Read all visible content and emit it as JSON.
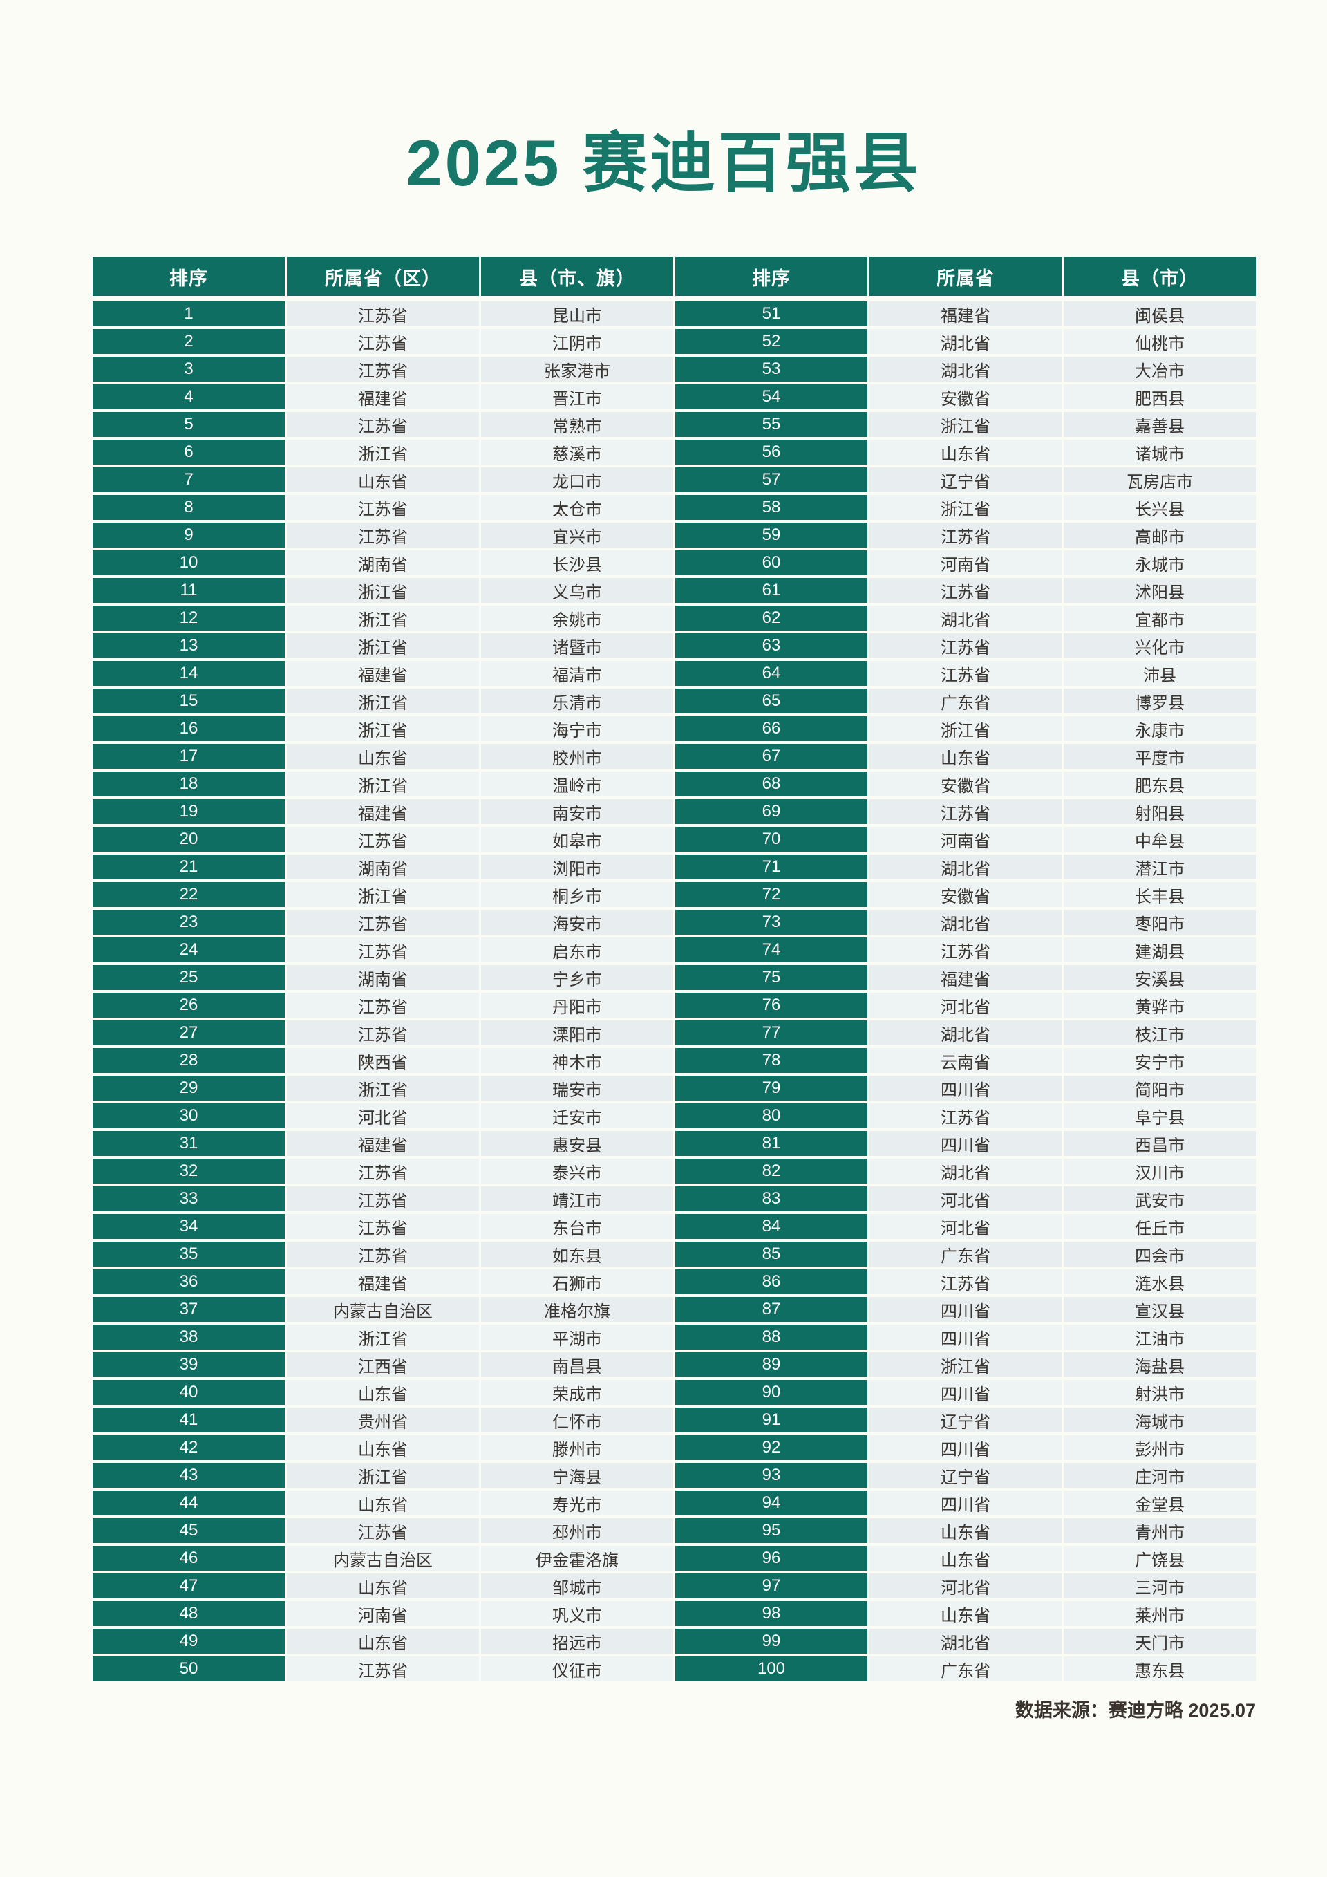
{
  "title": "2025 赛迪百强县",
  "footer": "数据来源：赛迪方略 2025.07",
  "colors": {
    "teal": "#0f6e62",
    "title_teal": "#17786a",
    "row_shade_a": "#e8eef0",
    "row_shade_b": "#eef3f3",
    "text_dark": "#3a3530",
    "page_bg": "#fcfcf6"
  },
  "table": {
    "headers": [
      "排序",
      "所属省（区）",
      "县（市、旗）",
      "排序",
      "所属省",
      "县（市）"
    ],
    "left_rows": [
      [
        "1",
        "江苏省",
        "昆山市"
      ],
      [
        "2",
        "江苏省",
        "江阴市"
      ],
      [
        "3",
        "江苏省",
        "张家港市"
      ],
      [
        "4",
        "福建省",
        "晋江市"
      ],
      [
        "5",
        "江苏省",
        "常熟市"
      ],
      [
        "6",
        "浙江省",
        "慈溪市"
      ],
      [
        "7",
        "山东省",
        "龙口市"
      ],
      [
        "8",
        "江苏省",
        "太仓市"
      ],
      [
        "9",
        "江苏省",
        "宜兴市"
      ],
      [
        "10",
        "湖南省",
        "长沙县"
      ],
      [
        "11",
        "浙江省",
        "义乌市"
      ],
      [
        "12",
        "浙江省",
        "余姚市"
      ],
      [
        "13",
        "浙江省",
        "诸暨市"
      ],
      [
        "14",
        "福建省",
        "福清市"
      ],
      [
        "15",
        "浙江省",
        "乐清市"
      ],
      [
        "16",
        "浙江省",
        "海宁市"
      ],
      [
        "17",
        "山东省",
        "胶州市"
      ],
      [
        "18",
        "浙江省",
        "温岭市"
      ],
      [
        "19",
        "福建省",
        "南安市"
      ],
      [
        "20",
        "江苏省",
        "如皋市"
      ],
      [
        "21",
        "湖南省",
        "浏阳市"
      ],
      [
        "22",
        "浙江省",
        "桐乡市"
      ],
      [
        "23",
        "江苏省",
        "海安市"
      ],
      [
        "24",
        "江苏省",
        "启东市"
      ],
      [
        "25",
        "湖南省",
        "宁乡市"
      ],
      [
        "26",
        "江苏省",
        "丹阳市"
      ],
      [
        "27",
        "江苏省",
        "溧阳市"
      ],
      [
        "28",
        "陕西省",
        "神木市"
      ],
      [
        "29",
        "浙江省",
        "瑞安市"
      ],
      [
        "30",
        "河北省",
        "迁安市"
      ],
      [
        "31",
        "福建省",
        "惠安县"
      ],
      [
        "32",
        "江苏省",
        "泰兴市"
      ],
      [
        "33",
        "江苏省",
        "靖江市"
      ],
      [
        "34",
        "江苏省",
        "东台市"
      ],
      [
        "35",
        "江苏省",
        "如东县"
      ],
      [
        "36",
        "福建省",
        "石狮市"
      ],
      [
        "37",
        "内蒙古自治区",
        "准格尔旗"
      ],
      [
        "38",
        "浙江省",
        "平湖市"
      ],
      [
        "39",
        "江西省",
        "南昌县"
      ],
      [
        "40",
        "山东省",
        "荣成市"
      ],
      [
        "41",
        "贵州省",
        "仁怀市"
      ],
      [
        "42",
        "山东省",
        "滕州市"
      ],
      [
        "43",
        "浙江省",
        "宁海县"
      ],
      [
        "44",
        "山东省",
        "寿光市"
      ],
      [
        "45",
        "江苏省",
        "邳州市"
      ],
      [
        "46",
        "内蒙古自治区",
        "伊金霍洛旗"
      ],
      [
        "47",
        "山东省",
        "邹城市"
      ],
      [
        "48",
        "河南省",
        "巩义市"
      ],
      [
        "49",
        "山东省",
        "招远市"
      ],
      [
        "50",
        "江苏省",
        "仪征市"
      ]
    ],
    "right_rows": [
      [
        "51",
        "福建省",
        "闽侯县"
      ],
      [
        "52",
        "湖北省",
        "仙桃市"
      ],
      [
        "53",
        "湖北省",
        "大冶市"
      ],
      [
        "54",
        "安徽省",
        "肥西县"
      ],
      [
        "55",
        "浙江省",
        "嘉善县"
      ],
      [
        "56",
        "山东省",
        "诸城市"
      ],
      [
        "57",
        "辽宁省",
        "瓦房店市"
      ],
      [
        "58",
        "浙江省",
        "长兴县"
      ],
      [
        "59",
        "江苏省",
        "高邮市"
      ],
      [
        "60",
        "河南省",
        "永城市"
      ],
      [
        "61",
        "江苏省",
        "沭阳县"
      ],
      [
        "62",
        "湖北省",
        "宜都市"
      ],
      [
        "63",
        "江苏省",
        "兴化市"
      ],
      [
        "64",
        "江苏省",
        "沛县"
      ],
      [
        "65",
        "广东省",
        "博罗县"
      ],
      [
        "66",
        "浙江省",
        "永康市"
      ],
      [
        "67",
        "山东省",
        "平度市"
      ],
      [
        "68",
        "安徽省",
        "肥东县"
      ],
      [
        "69",
        "江苏省",
        "射阳县"
      ],
      [
        "70",
        "河南省",
        "中牟县"
      ],
      [
        "71",
        "湖北省",
        "潜江市"
      ],
      [
        "72",
        "安徽省",
        "长丰县"
      ],
      [
        "73",
        "湖北省",
        "枣阳市"
      ],
      [
        "74",
        "江苏省",
        "建湖县"
      ],
      [
        "75",
        "福建省",
        "安溪县"
      ],
      [
        "76",
        "河北省",
        "黄骅市"
      ],
      [
        "77",
        "湖北省",
        "枝江市"
      ],
      [
        "78",
        "云南省",
        "安宁市"
      ],
      [
        "79",
        "四川省",
        "简阳市"
      ],
      [
        "80",
        "江苏省",
        "阜宁县"
      ],
      [
        "81",
        "四川省",
        "西昌市"
      ],
      [
        "82",
        "湖北省",
        "汉川市"
      ],
      [
        "83",
        "河北省",
        "武安市"
      ],
      [
        "84",
        "河北省",
        "任丘市"
      ],
      [
        "85",
        "广东省",
        "四会市"
      ],
      [
        "86",
        "江苏省",
        "涟水县"
      ],
      [
        "87",
        "四川省",
        "宣汉县"
      ],
      [
        "88",
        "四川省",
        "江油市"
      ],
      [
        "89",
        "浙江省",
        "海盐县"
      ],
      [
        "90",
        "四川省",
        "射洪市"
      ],
      [
        "91",
        "辽宁省",
        "海城市"
      ],
      [
        "92",
        "四川省",
        "彭州市"
      ],
      [
        "93",
        "辽宁省",
        "庄河市"
      ],
      [
        "94",
        "四川省",
        "金堂县"
      ],
      [
        "95",
        "山东省",
        "青州市"
      ],
      [
        "96",
        "山东省",
        "广饶县"
      ],
      [
        "97",
        "河北省",
        "三河市"
      ],
      [
        "98",
        "山东省",
        "莱州市"
      ],
      [
        "99",
        "湖北省",
        "天门市"
      ],
      [
        "100",
        "广东省",
        "惠东县"
      ]
    ]
  }
}
